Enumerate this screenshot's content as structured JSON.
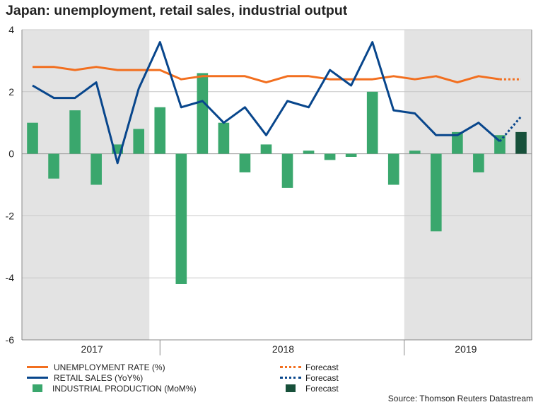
{
  "title": "Japan: unemployment, retail sales, industrial output",
  "source": "Source: Thomson Reuters Datastream",
  "chart_data": {
    "type": "bar+line",
    "ylim": [
      -6,
      4
    ],
    "yticks": [
      "4",
      "2",
      "0",
      "-2",
      "-4",
      "-6"
    ],
    "ytick_values": [
      4,
      2,
      0,
      -2,
      -4,
      -6
    ],
    "year_labels": [
      "2017",
      "2018",
      "2019"
    ],
    "months": 24,
    "shaded_month_ranges": [
      [
        0,
        6
      ],
      [
        18,
        23
      ]
    ],
    "colors": {
      "unemployment": "#f26f1f",
      "retail": "#08468c",
      "industrial": "#3aa76d",
      "industrial_forecast": "#17503a",
      "shade": "#e3e3e3",
      "grid": "#c8c8c8"
    },
    "series": [
      {
        "name": "UNEMPLOYMENT RATE (%)",
        "kind": "line",
        "values": [
          2.8,
          2.8,
          2.7,
          2.8,
          2.7,
          2.7,
          2.7,
          2.4,
          2.5,
          2.5,
          2.5,
          2.3,
          2.5,
          2.5,
          2.4,
          2.4,
          2.4,
          2.5,
          2.4,
          2.5,
          2.3,
          2.5,
          2.4
        ],
        "forecast": [
          2.4,
          2.4
        ],
        "forecast_label": "Forecast"
      },
      {
        "name": "RETAIL SALES (YoY%)",
        "kind": "line",
        "values": [
          2.2,
          1.8,
          1.8,
          2.3,
          -0.3,
          2.1,
          3.6,
          1.5,
          1.7,
          1.0,
          1.5,
          0.6,
          1.7,
          1.5,
          2.7,
          2.2,
          3.6,
          1.4,
          1.3,
          0.6,
          0.6,
          1.0,
          0.4
        ],
        "forecast": [
          0.4,
          1.2
        ],
        "forecast_label": "Forecast"
      },
      {
        "name": "INDUSTRIAL PRODUCTION (MoM%)",
        "kind": "bar",
        "values": [
          1.0,
          -0.8,
          1.4,
          -1.0,
          0.3,
          0.8,
          1.5,
          -4.2,
          2.6,
          1.0,
          -0.6,
          0.3,
          -1.1,
          0.1,
          -0.2,
          -0.1,
          2.0,
          -1.0,
          0.1,
          -2.5,
          0.7,
          -0.6,
          0.6
        ],
        "forecast": 0.7,
        "forecast_label": "Forecast"
      }
    ]
  }
}
